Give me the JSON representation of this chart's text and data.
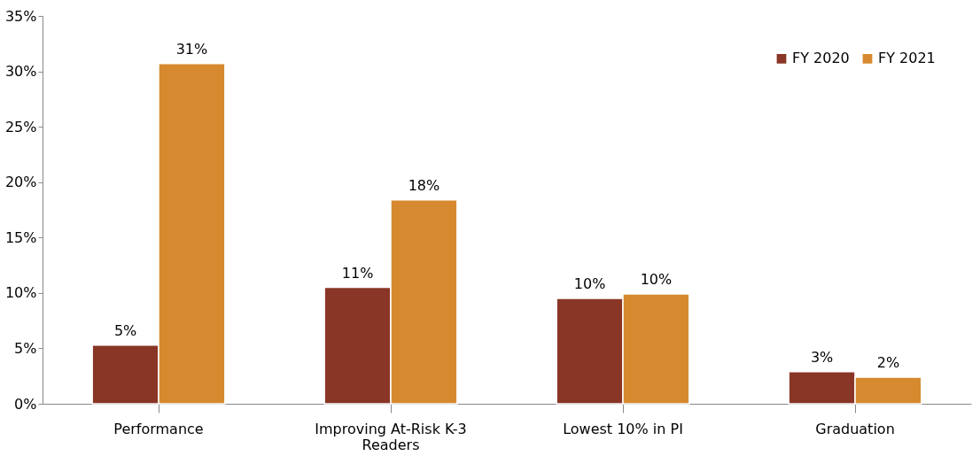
{
  "chart_data": {
    "type": "bar",
    "categories": [
      "Performance",
      "Improving At-Risk K-3 Readers",
      "Lowest 10% in PI",
      "Graduation"
    ],
    "series": [
      {
        "name": "FY 2020",
        "color": "#893626",
        "values": [
          5.3,
          10.5,
          9.5,
          2.9
        ],
        "value_labels": [
          "5%",
          "11%",
          "10%",
          "3%"
        ]
      },
      {
        "name": "FY 2021",
        "color": "#d6892f",
        "values": [
          30.7,
          18.4,
          9.9,
          2.4
        ],
        "value_labels": [
          "31%",
          "18%",
          "10%",
          "2%"
        ]
      }
    ],
    "ylim": [
      0,
      35
    ],
    "yticks": [
      {
        "value": 0,
        "label": "0%"
      },
      {
        "value": 5,
        "label": "5%"
      },
      {
        "value": 10,
        "label": "10%"
      },
      {
        "value": 15,
        "label": "15%"
      },
      {
        "value": 20,
        "label": "20%"
      },
      {
        "value": 25,
        "label": "25%"
      },
      {
        "value": 30,
        "label": "30%"
      },
      {
        "value": 35,
        "label": "35%"
      }
    ],
    "grid": false,
    "legend": "top right"
  }
}
